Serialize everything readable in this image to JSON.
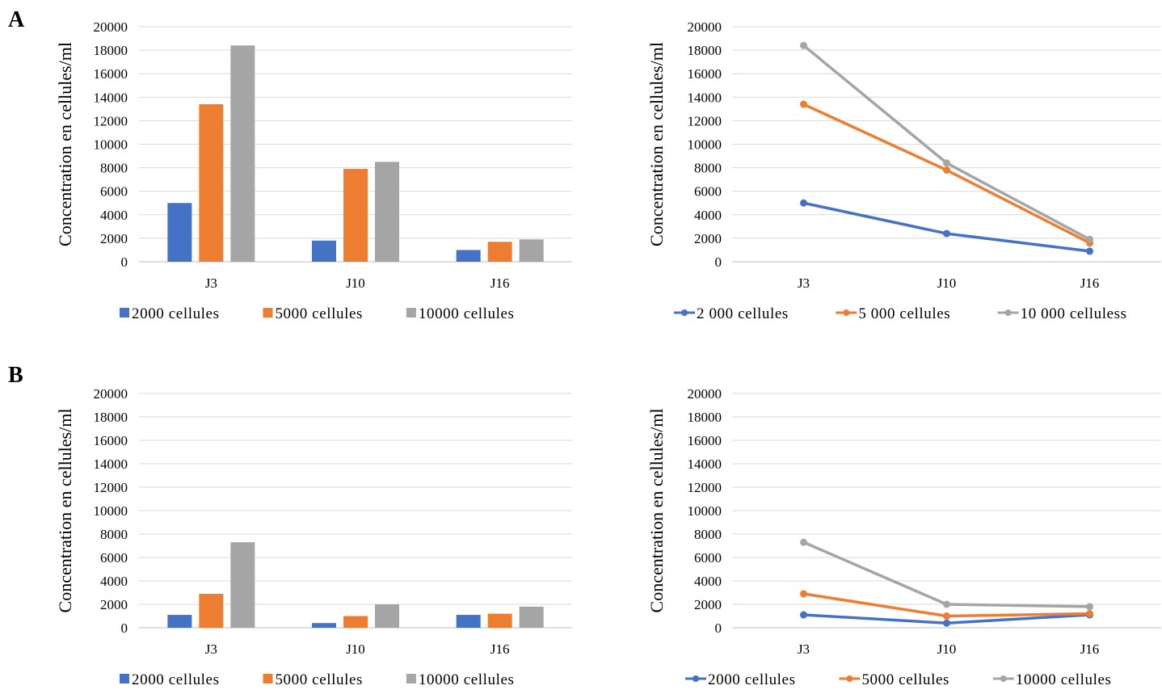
{
  "figure": {
    "panels": [
      {
        "label": "A"
      },
      {
        "label": "B"
      }
    ]
  },
  "chart_data": [
    {
      "panel": "A",
      "type": "bar",
      "categories": [
        "J3",
        "J10",
        "J16"
      ],
      "series": [
        {
          "name": "2000 cellules",
          "values": [
            5000,
            1800,
            1000
          ]
        },
        {
          "name": "5000 cellules",
          "values": [
            13400,
            7900,
            1700
          ]
        },
        {
          "name": "10000 cellules",
          "values": [
            18400,
            8500,
            1900
          ]
        }
      ],
      "ylabel": "Concentration en cellules/ml",
      "ylim": [
        0,
        20000
      ],
      "yticks": [
        0,
        2000,
        4000,
        6000,
        8000,
        10000,
        12000,
        14000,
        16000,
        18000,
        20000
      ],
      "grid": true,
      "legend": "bottom",
      "colors": [
        "#4472c4",
        "#ed7d31",
        "#a5a5a5"
      ]
    },
    {
      "panel": "A",
      "type": "line",
      "categories": [
        "J3",
        "J10",
        "J16"
      ],
      "series": [
        {
          "name": "2 000 cellules",
          "values": [
            5000,
            2400,
            900
          ]
        },
        {
          "name": "5 000 cellules",
          "values": [
            13400,
            7800,
            1600
          ]
        },
        {
          "name": "10 000 celluless",
          "values": [
            18400,
            8400,
            1900
          ]
        }
      ],
      "ylabel": "Concentration en cellules/ml",
      "ylim": [
        0,
        20000
      ],
      "yticks": [
        0,
        2000,
        4000,
        6000,
        8000,
        10000,
        12000,
        14000,
        16000,
        18000,
        20000
      ],
      "grid": true,
      "legend": "bottom",
      "colors": [
        "#4472c4",
        "#ed7d31",
        "#a5a5a5"
      ]
    },
    {
      "panel": "B",
      "type": "bar",
      "categories": [
        "J3",
        "J10",
        "J16"
      ],
      "series": [
        {
          "name": "2000 cellules",
          "values": [
            1100,
            400,
            1100
          ]
        },
        {
          "name": "5000 cellules",
          "values": [
            2900,
            1000,
            1200
          ]
        },
        {
          "name": "10000 cellules",
          "values": [
            7300,
            2000,
            1800
          ]
        }
      ],
      "ylabel": "Concentration en cellules/ml",
      "ylim": [
        0,
        20000
      ],
      "yticks": [
        0,
        2000,
        4000,
        6000,
        8000,
        10000,
        12000,
        14000,
        16000,
        18000,
        20000
      ],
      "grid": true,
      "legend": "bottom",
      "colors": [
        "#4472c4",
        "#ed7d31",
        "#a5a5a5"
      ]
    },
    {
      "panel": "B",
      "type": "line",
      "categories": [
        "J3",
        "J10",
        "J16"
      ],
      "series": [
        {
          "name": "2000 cellules",
          "values": [
            1100,
            400,
            1100
          ]
        },
        {
          "name": "5000 cellules",
          "values": [
            2900,
            1000,
            1200
          ]
        },
        {
          "name": "10000 cellules",
          "values": [
            7300,
            2000,
            1800
          ]
        }
      ],
      "ylabel": "Concentration en cellules/ml",
      "ylim": [
        0,
        20000
      ],
      "yticks": [
        0,
        2000,
        4000,
        6000,
        8000,
        10000,
        12000,
        14000,
        16000,
        18000,
        20000
      ],
      "grid": true,
      "legend": "bottom",
      "colors": [
        "#4472c4",
        "#ed7d31",
        "#a5a5a5"
      ]
    }
  ]
}
